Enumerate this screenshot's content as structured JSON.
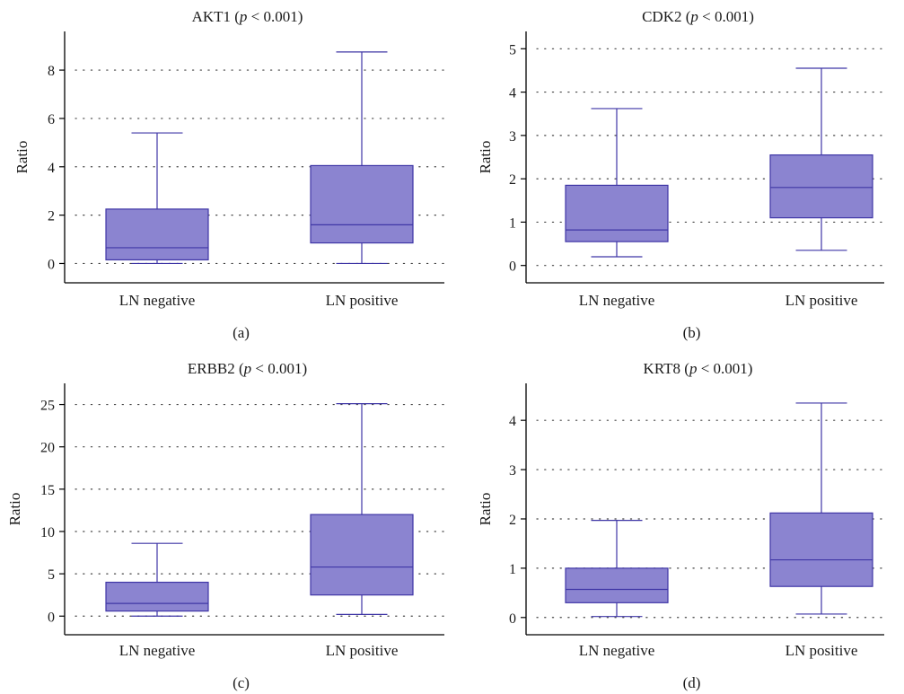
{
  "colors": {
    "box_fill": "#8b84d0",
    "box_stroke": "#3f36a6",
    "axis": "#000000",
    "grid": "#444444"
  },
  "chart_data": [
    {
      "type": "box",
      "title": "AKT1",
      "title_stat": "p",
      "title_rest": " < 0.001)",
      "ylabel": "Ratio",
      "panel_label": "(a)",
      "ylim": [
        -0.8,
        9.6
      ],
      "yticks": [
        0,
        2,
        4,
        6,
        8
      ],
      "grid": true,
      "categories": [
        "LN negative",
        "LN positive"
      ],
      "boxes": [
        {
          "whisker_low": 0.0,
          "q1": 0.15,
          "median": 0.65,
          "q3": 2.25,
          "whisker_high": 5.4
        },
        {
          "whisker_low": 0.0,
          "q1": 0.85,
          "median": 1.6,
          "q3": 4.05,
          "whisker_high": 8.75
        }
      ]
    },
    {
      "type": "box",
      "title": "CDK2",
      "title_stat": "p",
      "title_rest": " < 0.001)",
      "ylabel": "Ratio",
      "panel_label": "(b)",
      "ylim": [
        -0.4,
        5.4
      ],
      "yticks": [
        0,
        1,
        2,
        3,
        4,
        5
      ],
      "grid": true,
      "categories": [
        "LN negative",
        "LN positive"
      ],
      "boxes": [
        {
          "whisker_low": 0.2,
          "q1": 0.55,
          "median": 0.82,
          "q3": 1.85,
          "whisker_high": 3.62
        },
        {
          "whisker_low": 0.35,
          "q1": 1.1,
          "median": 1.8,
          "q3": 2.55,
          "whisker_high": 4.55
        }
      ]
    },
    {
      "type": "box",
      "title": "ERBB2",
      "title_stat": "p",
      "title_rest": " < 0.001)",
      "ylabel": "Ratio",
      "panel_label": "(c)",
      "ylim": [
        -2.2,
        27.5
      ],
      "yticks": [
        0,
        5,
        10,
        15,
        20,
        25
      ],
      "grid": true,
      "categories": [
        "LN negative",
        "LN positive"
      ],
      "boxes": [
        {
          "whisker_low": 0.0,
          "q1": 0.6,
          "median": 1.5,
          "q3": 4.0,
          "whisker_high": 8.6
        },
        {
          "whisker_low": 0.2,
          "q1": 2.5,
          "median": 5.8,
          "q3": 12.0,
          "whisker_high": 25.1
        }
      ]
    },
    {
      "type": "box",
      "title": "KRT8",
      "title_stat": "p",
      "title_rest": " < 0.001)",
      "ylabel": "Ratio",
      "panel_label": "(d)",
      "ylim": [
        -0.35,
        4.75
      ],
      "yticks": [
        0,
        1,
        2,
        3,
        4
      ],
      "grid": true,
      "categories": [
        "LN negative",
        "LN positive"
      ],
      "boxes": [
        {
          "whisker_low": 0.02,
          "q1": 0.3,
          "median": 0.57,
          "q3": 1.0,
          "whisker_high": 1.97
        },
        {
          "whisker_low": 0.07,
          "q1": 0.63,
          "median": 1.17,
          "q3": 2.12,
          "whisker_high": 4.35
        }
      ]
    }
  ]
}
